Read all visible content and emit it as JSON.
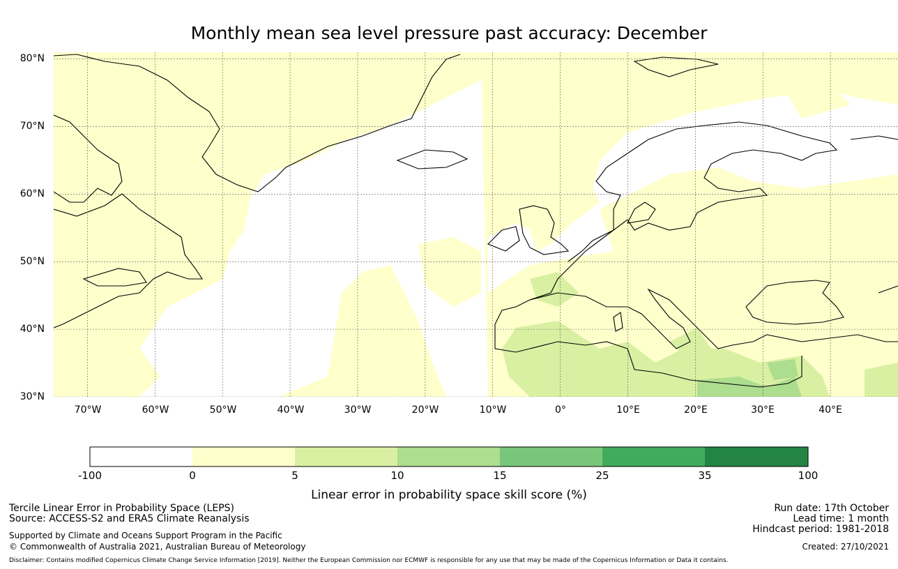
{
  "title": "Monthly mean sea level pressure past accuracy: December",
  "map": {
    "lat_labels": [
      "80°N",
      "70°N",
      "60°N",
      "50°N",
      "40°N",
      "30°N"
    ],
    "lon_labels": [
      "70°W",
      "60°W",
      "50°W",
      "40°W",
      "30°W",
      "20°W",
      "10°W",
      "0°",
      "10°E",
      "20°E",
      "30°E",
      "40°E"
    ],
    "lat_range": [
      30,
      81
    ],
    "lon_range": [
      -75,
      50
    ],
    "lat_grid": [
      30,
      40,
      50,
      60,
      70,
      80
    ],
    "lon_grid": [
      -70,
      -60,
      -50,
      -40,
      -30,
      -20,
      -10,
      0,
      10,
      20,
      30,
      40
    ],
    "colors": {
      "land_line": "#000000",
      "grid_line": "#555555",
      "fill_0_5": "#ffffcc",
      "fill_5_10": "#d9f0a3",
      "fill_10_15": "#addd8e"
    }
  },
  "colorbar": {
    "ticks": [
      "-100",
      "0",
      "5",
      "10",
      "15",
      "25",
      "35",
      "100"
    ],
    "colors": [
      "#ffffff",
      "#ffffcc",
      "#d9f0a3",
      "#addd8e",
      "#78c679",
      "#41ab5d",
      "#238443"
    ],
    "label": "Linear error in probability space skill score (%)"
  },
  "footer": {
    "left_line1": "Tercile Linear Error in Probability Space (LEPS)",
    "left_line2": "Source: ACCESS-S2 and ERA5 Climate Reanalysis",
    "left_line3": "Supported by Climate and Oceans Support Program in the Pacific",
    "left_line4": "© Commonwealth of Australia 2021, Australian Bureau of Meteorology",
    "right_line1": "Run date: 17th October",
    "right_line2": "Lead time: 1 month",
    "right_line3": "Hindcast period: 1981-2018",
    "right_line4": "Created: 27/10/2021",
    "disclaimer": "Disclaimer: Contains modified Copernicus Climate Change Service Information [2019]. Neither the European Commission nor ECMWF is responsible for any use that may be made of the Copernicus Information or Data it contains."
  }
}
